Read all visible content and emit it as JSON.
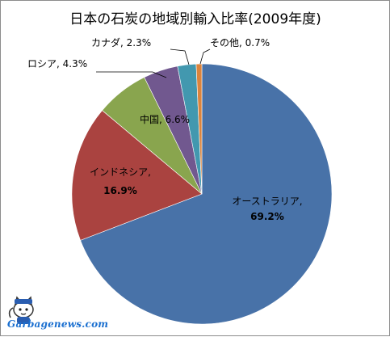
{
  "chart_data": {
    "type": "pie",
    "title": "日本の石炭の地域別輸入比率(2009年度)",
    "slices": [
      {
        "name": "オーストラリア",
        "value": 69.2,
        "display": "69.2%",
        "color": "#4872a8"
      },
      {
        "name": "インドネシア",
        "value": 16.9,
        "display": "16.9%",
        "color": "#aa4340"
      },
      {
        "name": "中国",
        "value": 6.6,
        "display": "6.6%",
        "color": "#89a54e"
      },
      {
        "name": "ロシア",
        "value": 4.3,
        "display": "4.3%",
        "color": "#71588f"
      },
      {
        "name": "カナダ",
        "value": 2.3,
        "display": "2.3%",
        "color": "#4298af"
      },
      {
        "name": "その他",
        "value": 0.7,
        "display": "0.7%",
        "color": "#db843d"
      }
    ],
    "legend": "none"
  },
  "watermark": {
    "text": "Garbagenews.com"
  }
}
